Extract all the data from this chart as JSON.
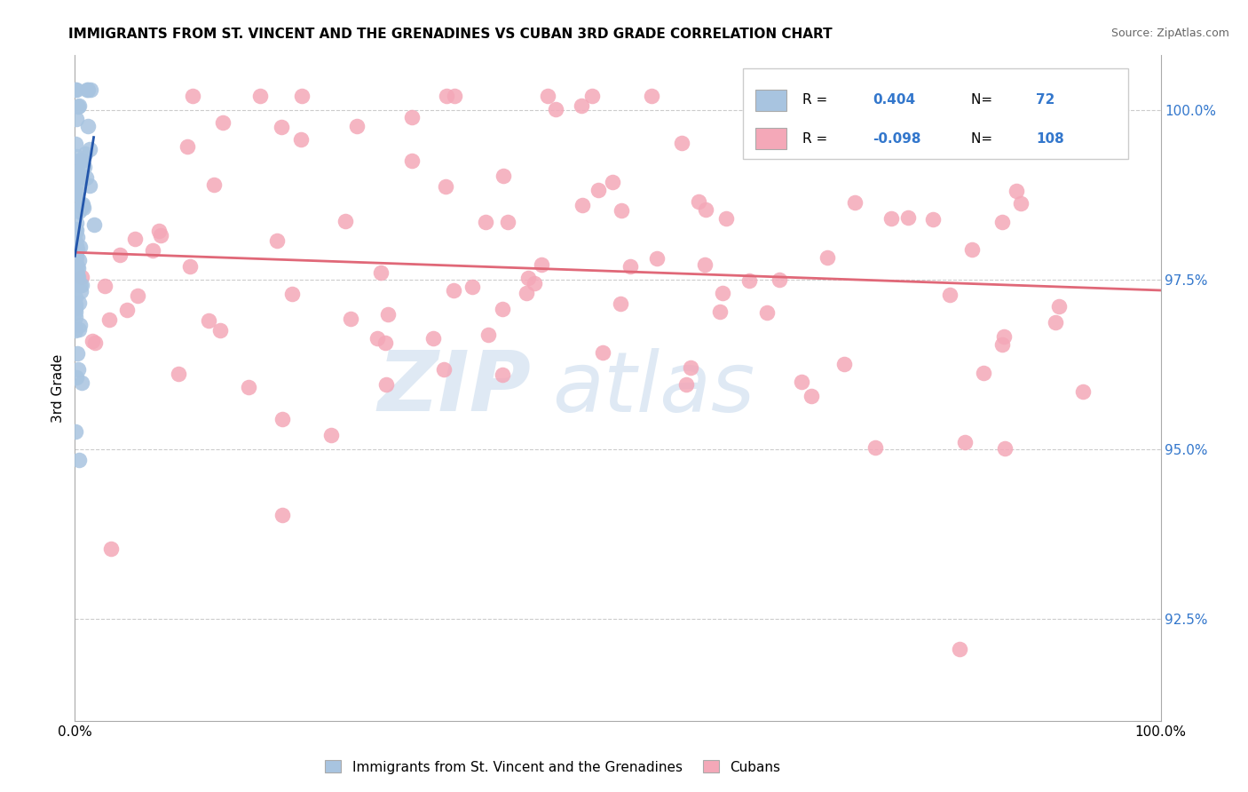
{
  "title": "IMMIGRANTS FROM ST. VINCENT AND THE GRENADINES VS CUBAN 3RD GRADE CORRELATION CHART",
  "source": "Source: ZipAtlas.com",
  "ylabel": "3rd Grade",
  "xmin": 0.0,
  "xmax": 100.0,
  "ymin": 91.0,
  "ymax": 100.8,
  "yticks": [
    92.5,
    95.0,
    97.5,
    100.0
  ],
  "ytick_labels": [
    "92.5%",
    "95.0%",
    "97.5%",
    "100.0%"
  ],
  "blue_R": 0.404,
  "blue_N": 72,
  "pink_R": -0.098,
  "pink_N": 108,
  "blue_color": "#a8c4e0",
  "pink_color": "#f4a8b8",
  "blue_line_color": "#2255aa",
  "pink_line_color": "#e06878",
  "legend_label_blue": "Immigrants from St. Vincent and the Grenadines",
  "legend_label_pink": "Cubans",
  "watermark_zip": "ZIP",
  "watermark_atlas": "atlas",
  "figsize": [
    14.06,
    8.92
  ],
  "dpi": 100
}
